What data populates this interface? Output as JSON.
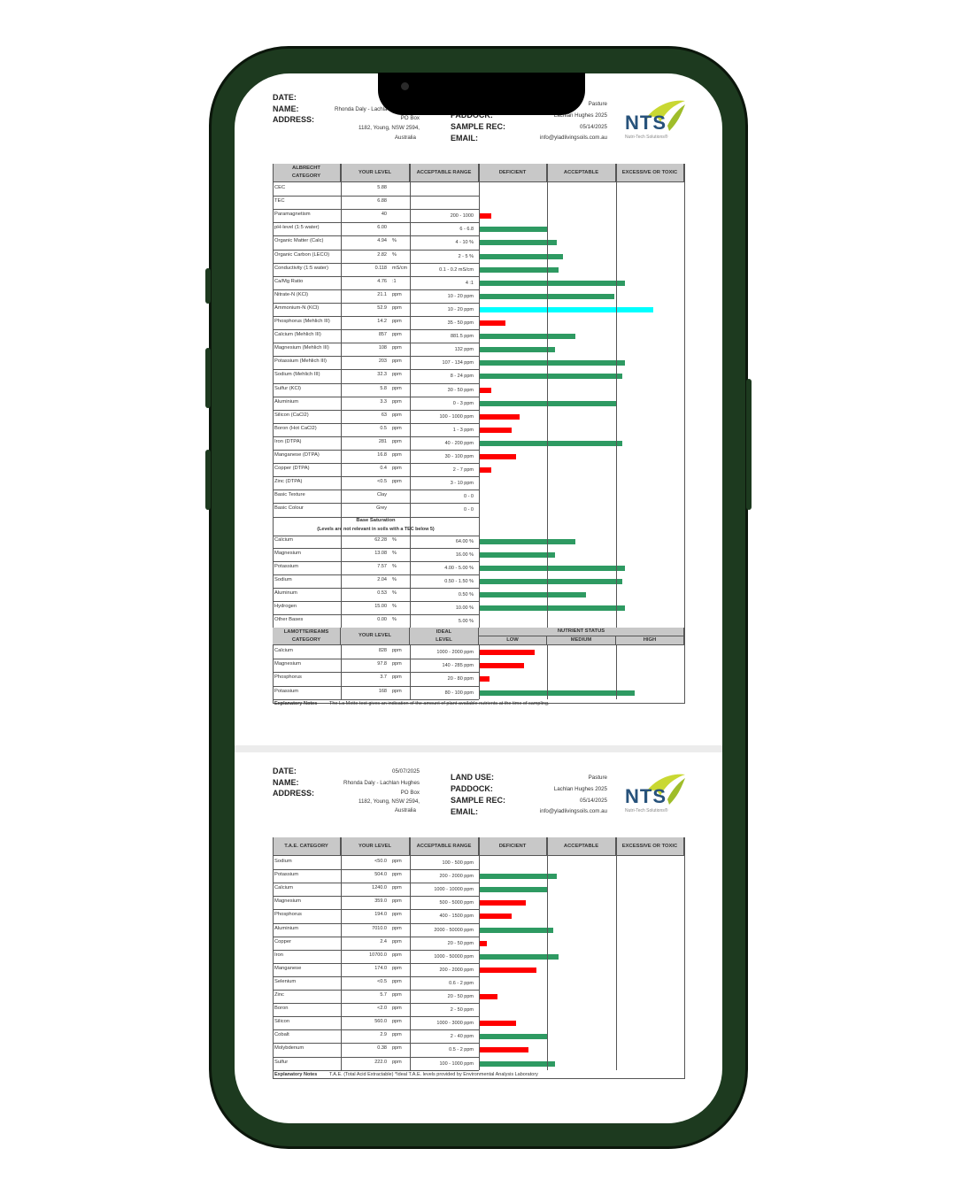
{
  "colors": {
    "deficient": "#ff0000",
    "acceptable": "#2e9a62",
    "excessive": "#00ffff",
    "frame": "#1d3a1f"
  },
  "report1": {
    "header": {
      "date_label": "DATE:",
      "name_label": "NAME:",
      "address_label": "ADDRESS:",
      "name_value": "Rhonda Daly - Lachla",
      "address_line1": "PO Box",
      "address_line2": "1182, Young, NSW 2594,",
      "address_line3": "Australia",
      "paddock_label": "PADDOCK:",
      "sample_label": "SAMPLE REC:",
      "email_label": "EMAIL:",
      "land_use_value": "Pasture",
      "paddock_value": "Lachlan Hughes 2025",
      "sample_value": "05/14/2025",
      "email_value": "info@yladlivingsoils.com.au"
    },
    "logo": {
      "text": "NTS",
      "sub": "Nutri-Tech Solutions®"
    },
    "columns": {
      "cat": "ALBRECHT CATEGORY",
      "level": "YOUR LEVEL",
      "range": "ACCEPTABLE RANGE",
      "def": "DEFICIENT",
      "acc": "ACCEPTABLE",
      "exc": "EXCESSIVE OR TOXIC"
    },
    "rows": [
      {
        "name": "CEC",
        "value": "5.88",
        "unit": "",
        "range": "",
        "bar": null
      },
      {
        "name": "TEC",
        "value": "6.88",
        "unit": "",
        "range": "",
        "bar": null
      },
      {
        "name": "Paramagnetism",
        "value": "40",
        "unit": "",
        "range": "200 - 1000",
        "bar": {
          "status": "deficient",
          "level": 0.06
        }
      },
      {
        "name": "pH-level (1:5 water)",
        "value": "6.00",
        "unit": "",
        "range": "6 - 6.8",
        "bar": {
          "status": "acceptable",
          "level": 0.33
        }
      },
      {
        "name": "Organic Matter (Calc)",
        "value": "4.94",
        "unit": "%",
        "range": "4 - 10    %",
        "bar": {
          "status": "acceptable",
          "level": 0.38
        }
      },
      {
        "name": "Organic Carbon (LECO)",
        "value": "2.82",
        "unit": "%",
        "range": "2 - 5    %",
        "bar": {
          "status": "acceptable",
          "level": 0.41
        }
      },
      {
        "name": "Conductivity (1:5 water)",
        "value": "0.118",
        "unit": "mS/cm",
        "range": "0.1 - 0.2    mS/cm",
        "bar": {
          "status": "acceptable",
          "level": 0.39
        }
      },
      {
        "name": "Ca/Mg Ratio",
        "value": "4.76",
        "unit": ":1",
        "range": "4    :1",
        "bar": {
          "status": "acceptable",
          "level": 0.71
        }
      },
      {
        "name": "Nitrate-N (KCl)",
        "value": "21.1",
        "unit": "ppm",
        "range": "10 - 20    ppm",
        "bar": {
          "status": "acceptable",
          "level": 0.66
        }
      },
      {
        "name": "Ammonium-N (KCl)",
        "value": "52.9",
        "unit": "ppm",
        "range": "10 - 20    ppm",
        "bar": {
          "status": "excessive",
          "level": 0.85
        }
      },
      {
        "name": "Phosphorus (Mehlich III)",
        "value": "14.2",
        "unit": "ppm",
        "range": "35 - 50    ppm",
        "bar": {
          "status": "deficient",
          "level": 0.13
        }
      },
      {
        "name": "Calcium (Mehlich III)",
        "value": "857",
        "unit": "ppm",
        "range": "881.5    ppm",
        "bar": {
          "status": "acceptable",
          "level": 0.47
        }
      },
      {
        "name": "Magnesium (Mehlich III)",
        "value": "108",
        "unit": "ppm",
        "range": "132    ppm",
        "bar": {
          "status": "acceptable",
          "level": 0.37
        }
      },
      {
        "name": "Potassium (Mehlich III)",
        "value": "203",
        "unit": "ppm",
        "range": "107 - 134    ppm",
        "bar": {
          "status": "acceptable",
          "level": 0.71
        }
      },
      {
        "name": "Sodium (Mehlich III)",
        "value": "32.3",
        "unit": "ppm",
        "range": "8 - 24    ppm",
        "bar": {
          "status": "acceptable",
          "level": 0.7
        }
      },
      {
        "name": "Sulfur (KCl)",
        "value": "5.8",
        "unit": "ppm",
        "range": "30 - 50    ppm",
        "bar": {
          "status": "deficient",
          "level": 0.06
        }
      },
      {
        "name": "Aluminium",
        "value": "3.3",
        "unit": "ppm",
        "range": "0 - 3    ppm",
        "bar": {
          "status": "acceptable",
          "level": 0.67
        }
      },
      {
        "name": "Silicon (CaCl2)",
        "value": "63",
        "unit": "ppm",
        "range": "100 - 1000    ppm",
        "bar": {
          "status": "deficient",
          "level": 0.2
        }
      },
      {
        "name": "Boron (Hot CaCl2)",
        "value": "0.5",
        "unit": "ppm",
        "range": "1 - 3    ppm",
        "bar": {
          "status": "deficient",
          "level": 0.16
        }
      },
      {
        "name": "Iron (DTPA)",
        "value": "281",
        "unit": "ppm",
        "range": "40 - 200    ppm",
        "bar": {
          "status": "acceptable",
          "level": 0.7
        }
      },
      {
        "name": "Manganese (DTPA)",
        "value": "16.8",
        "unit": "ppm",
        "range": "30 - 100    ppm",
        "bar": {
          "status": "deficient",
          "level": 0.18
        }
      },
      {
        "name": "Copper (DTPA)",
        "value": "0.4",
        "unit": "ppm",
        "range": "2 - 7    ppm",
        "bar": {
          "status": "deficient",
          "level": 0.06
        }
      },
      {
        "name": "Zinc (DTPA)",
        "value": "<0.5",
        "unit": "ppm",
        "range": "3 - 10    ppm",
        "bar": null
      },
      {
        "name": "Basic Texture",
        "value": "Clay",
        "unit": "",
        "range": "0 - 0",
        "bar": null
      },
      {
        "name": "Basic Colour",
        "value": "Grey",
        "unit": "",
        "range": "0 - 0",
        "bar": null
      }
    ],
    "base_title": "Base Saturation",
    "base_sub": "(Levels are not relevant in soils with a TEC below 5)",
    "base_rows": [
      {
        "name": "Calcium",
        "value": "62.28",
        "unit": "%",
        "range": "64.00    %",
        "bar": {
          "status": "acceptable",
          "level": 0.47
        }
      },
      {
        "name": "Magnesium",
        "value": "13.08",
        "unit": "%",
        "range": "16.00    %",
        "bar": {
          "status": "acceptable",
          "level": 0.37
        }
      },
      {
        "name": "Potassium",
        "value": "7.57",
        "unit": "%",
        "range": "4.00 - 5.00    %",
        "bar": {
          "status": "acceptable",
          "level": 0.71
        }
      },
      {
        "name": "Sodium",
        "value": "2.04",
        "unit": "%",
        "range": "0.50 - 1.50    %",
        "bar": {
          "status": "acceptable",
          "level": 0.7
        }
      },
      {
        "name": "Aluminum",
        "value": "0.53",
        "unit": "%",
        "range": "0.50    %",
        "bar": {
          "status": "acceptable",
          "level": 0.52
        }
      },
      {
        "name": "Hydrogen",
        "value": "15.00",
        "unit": "%",
        "range": "10.00    %",
        "bar": {
          "status": "acceptable",
          "level": 0.71
        }
      },
      {
        "name": "Other Bases",
        "value": "0.00",
        "unit": "%",
        "range": "5.00    %",
        "bar": null
      }
    ],
    "lamotte_cols": {
      "cat": "LAMOTTE/REAMS CATEGORY",
      "level": "YOUR LEVEL",
      "range": "IDEAL LEVEL",
      "status": "NUTRIENT STATUS",
      "low": "LOW",
      "medium": "MEDIUM",
      "high": "HIGH"
    },
    "lamotte_rows": [
      {
        "name": "Calcium",
        "value": "828",
        "unit": "ppm",
        "range": "1000 - 2000    ppm",
        "bar": {
          "status": "deficient",
          "level": 0.27
        }
      },
      {
        "name": "Magnesium",
        "value": "97.8",
        "unit": "ppm",
        "range": "140 - 285    ppm",
        "bar": {
          "status": "deficient",
          "level": 0.22
        }
      },
      {
        "name": "Phosphorus",
        "value": "3.7",
        "unit": "ppm",
        "range": "20 - 80    ppm",
        "bar": {
          "status": "deficient",
          "level": 0.05
        }
      },
      {
        "name": "Potassium",
        "value": "168",
        "unit": "ppm",
        "range": "80 - 100    ppm",
        "bar": {
          "status": "acceptable",
          "level": 0.76
        }
      }
    ],
    "note_label": "Explanatory Notes",
    "note_text": "The La Motte test gives an indication of the amount of plant available nutrients at the time of sampling."
  },
  "report2": {
    "header": {
      "date_label": "DATE:",
      "name_label": "NAME:",
      "address_label": "ADDRESS:",
      "date_value": "05/07/2025",
      "name_value": "Rhonda Daly - Lachlan Hughes",
      "address_line1": "PO Box",
      "address_line2": "1182, Young, NSW 2594,",
      "address_line3": "Australia",
      "land_use_label": "LAND USE:",
      "paddock_label": "PADDOCK:",
      "sample_label": "SAMPLE REC:",
      "email_label": "EMAIL:",
      "land_use_value": "Pasture",
      "paddock_value": "Lachlan Hughes 2025",
      "sample_value": "05/14/2025",
      "email_value": "info@yladlivingsoils.com.au"
    },
    "logo": {
      "text": "NTS",
      "sub": "Nutri-Tech Solutions®"
    },
    "columns": {
      "cat": "T.A.E. CATEGORY",
      "level": "YOUR LEVEL",
      "range": "ACCEPTABLE RANGE",
      "def": "DEFICIENT",
      "acc": "ACCEPTABLE",
      "exc": "EXCESSIVE OR TOXIC"
    },
    "rows": [
      {
        "name": "Sodium",
        "value": "<50.0",
        "unit": "ppm",
        "range": "100 - 500    ppm",
        "bar": null
      },
      {
        "name": "Potassium",
        "value": "504.0",
        "unit": "ppm",
        "range": "200 - 2000    ppm",
        "bar": {
          "status": "acceptable",
          "level": 0.38
        }
      },
      {
        "name": "Calcium",
        "value": "1240.0",
        "unit": "ppm",
        "range": "1000 - 10000    ppm",
        "bar": {
          "status": "acceptable",
          "level": 0.33
        }
      },
      {
        "name": "Magnesium",
        "value": "359.0",
        "unit": "ppm",
        "range": "500 - 5000    ppm",
        "bar": {
          "status": "deficient",
          "level": 0.23
        }
      },
      {
        "name": "Phosphorus",
        "value": "194.0",
        "unit": "ppm",
        "range": "400 - 1500    ppm",
        "bar": {
          "status": "deficient",
          "level": 0.16
        }
      },
      {
        "name": "Aluminium",
        "value": "7010.0",
        "unit": "ppm",
        "range": "2000 - 50000    ppm",
        "bar": {
          "status": "acceptable",
          "level": 0.36
        }
      },
      {
        "name": "Copper",
        "value": "2.4",
        "unit": "ppm",
        "range": "20 - 50    ppm",
        "bar": {
          "status": "deficient",
          "level": 0.04
        }
      },
      {
        "name": "Iron",
        "value": "10700.0",
        "unit": "ppm",
        "range": "1000 - 50000    ppm",
        "bar": {
          "status": "acceptable",
          "level": 0.39
        }
      },
      {
        "name": "Manganese",
        "value": "174.0",
        "unit": "ppm",
        "range": "200 - 2000    ppm",
        "bar": {
          "status": "deficient",
          "level": 0.28
        }
      },
      {
        "name": "Selenium",
        "value": "<0.5",
        "unit": "ppm",
        "range": "0.6 - 2    ppm",
        "bar": null
      },
      {
        "name": "Zinc",
        "value": "5.7",
        "unit": "ppm",
        "range": "20 - 50    ppm",
        "bar": {
          "status": "deficient",
          "level": 0.09
        }
      },
      {
        "name": "Boron",
        "value": "<2.0",
        "unit": "ppm",
        "range": "2 - 50    ppm",
        "bar": null
      },
      {
        "name": "Silicon",
        "value": "560.0",
        "unit": "ppm",
        "range": "1000 - 3000    ppm",
        "bar": {
          "status": "deficient",
          "level": 0.18
        }
      },
      {
        "name": "Cobalt",
        "value": "2.9",
        "unit": "ppm",
        "range": "2 - 40    ppm",
        "bar": {
          "status": "acceptable",
          "level": 0.33
        }
      },
      {
        "name": "Molybdenum",
        "value": "0.38",
        "unit": "ppm",
        "range": "0.5 - 2    ppm",
        "bar": {
          "status": "deficient",
          "level": 0.24
        }
      },
      {
        "name": "Sulfur",
        "value": "222.0",
        "unit": "ppm",
        "range": "100 - 1000    ppm",
        "bar": {
          "status": "acceptable",
          "level": 0.37
        }
      }
    ],
    "note_label": "Explanatory Notes",
    "note_text": "T.A.E. (Total Acid Extractable) *Ideal T.A.E. levels provided by Environmental Analysis Laboratory"
  }
}
